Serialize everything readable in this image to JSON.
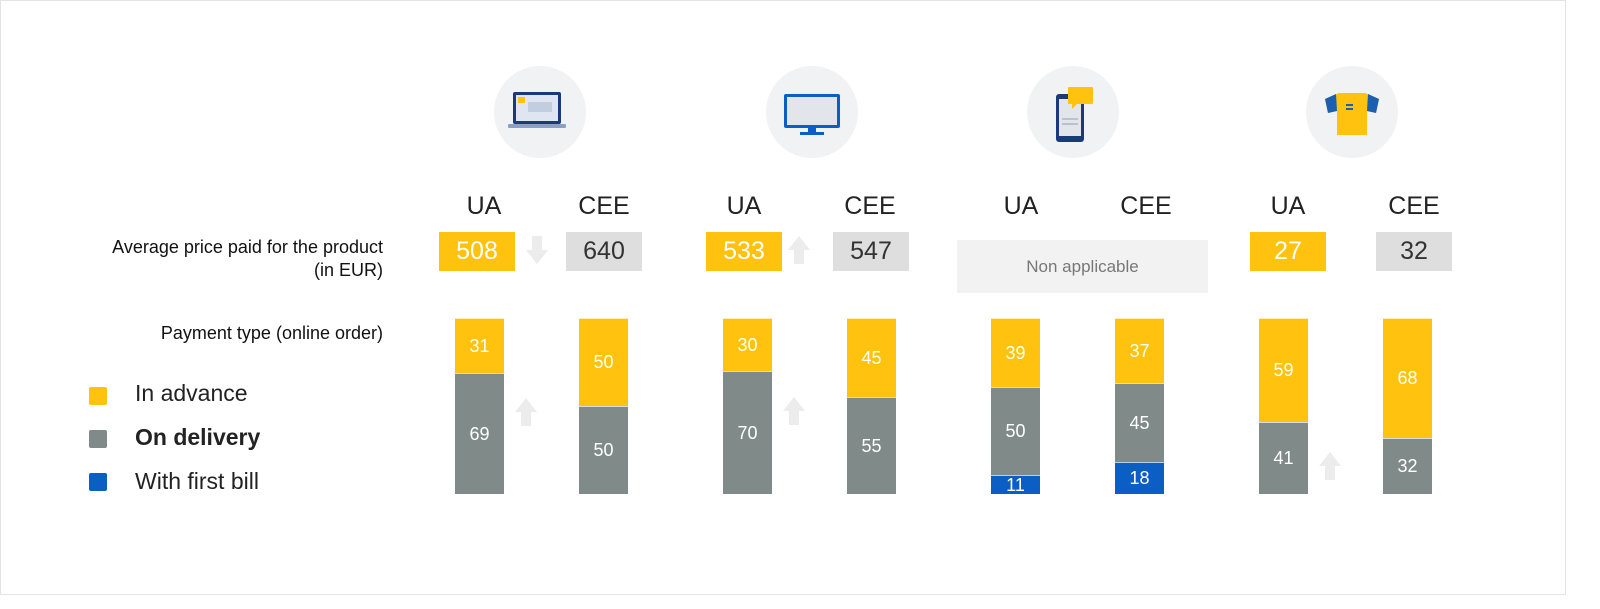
{
  "colors": {
    "advance": "#ffc20e",
    "delivery": "#7f8a89",
    "first_bill": "#0b5ec4",
    "arrow": "#ececec"
  },
  "row_labels": {
    "avg_price": "Average price paid for the product\n(in EUR)",
    "payment_type": "Payment type (online order)"
  },
  "legend": [
    {
      "label": "In advance",
      "color": "#ffc20e",
      "bold": false
    },
    {
      "label": "On delivery",
      "color": "#7f8a89",
      "bold": true
    },
    {
      "label": "With first bill",
      "color": "#0b5ec4",
      "bold": false
    }
  ],
  "na_text": "Non applicable",
  "chart_data": {
    "type": "bar",
    "stacked": true,
    "categories": [
      "laptop",
      "monitor",
      "smartphone",
      "t-shirt"
    ],
    "groups": [
      {
        "icon": "laptop-icon",
        "ua_label": "UA",
        "cee_label": "CEE",
        "price_ua": "508",
        "price_cee": "640",
        "price_trend": "down",
        "ua": {
          "advance": 31,
          "delivery": 69,
          "first_bill": 0,
          "trend": "up"
        },
        "cee": {
          "advance": 50,
          "delivery": 50,
          "first_bill": 0
        }
      },
      {
        "icon": "monitor-icon",
        "ua_label": "UA",
        "cee_label": "CEE",
        "price_ua": "533",
        "price_cee": "547",
        "price_trend": "up",
        "ua": {
          "advance": 30,
          "delivery": 70,
          "first_bill": 0,
          "trend": "up"
        },
        "cee": {
          "advance": 45,
          "delivery": 55,
          "first_bill": 0
        }
      },
      {
        "icon": "smartphone-icon",
        "ua_label": "UA",
        "cee_label": "CEE",
        "price_ua": null,
        "price_cee": null,
        "price_trend": null,
        "ua": {
          "advance": 39,
          "delivery": 50,
          "first_bill": 11,
          "trend": null
        },
        "cee": {
          "advance": 37,
          "delivery": 45,
          "first_bill": 18
        }
      },
      {
        "icon": "tshirt-icon",
        "ua_label": "UA",
        "cee_label": "CEE",
        "price_ua": "27",
        "price_cee": "32",
        "price_trend": null,
        "ua": {
          "advance": 59,
          "delivery": 41,
          "first_bill": 0,
          "trend": "up"
        },
        "cee": {
          "advance": 68,
          "delivery": 32,
          "first_bill": 0
        }
      }
    ],
    "ylim": [
      0,
      100
    ]
  }
}
